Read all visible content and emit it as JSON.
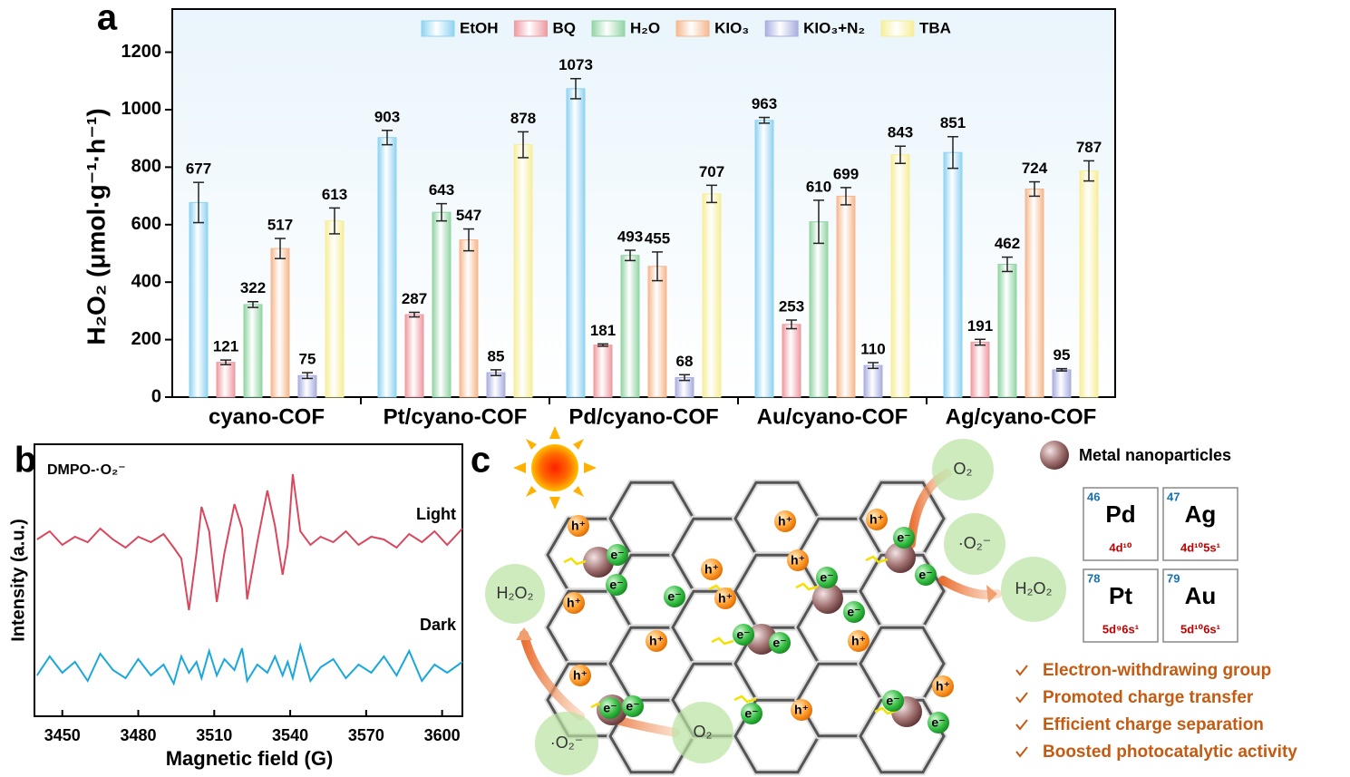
{
  "chart_data": [
    {
      "type": "bar",
      "panel_label": "a",
      "y_label": "H₂O₂ (μmol·g⁻¹·h⁻¹)",
      "categories": [
        "cyano-COF",
        "Pt/cyano-COF",
        "Pd/cyano-COF",
        "Au/cyano-COF",
        "Ag/cyano-COF"
      ],
      "series": [
        {
          "name": "EtOH",
          "color": "#8fd3f2",
          "values": [
            677,
            903,
            1073,
            963,
            851
          ],
          "errors": [
            70,
            25,
            35,
            10,
            55
          ]
        },
        {
          "name": "BQ",
          "color": "#ee9aa2",
          "values": [
            121,
            287,
            181,
            253,
            191
          ],
          "errors": [
            8,
            8,
            4,
            15,
            10
          ]
        },
        {
          "name": "H₂O",
          "color": "#93d4a4",
          "values": [
            322,
            643,
            493,
            610,
            462
          ],
          "errors": [
            10,
            30,
            18,
            75,
            25
          ]
        },
        {
          "name": "KIO₃",
          "color": "#f5b88f",
          "values": [
            517,
            547,
            455,
            699,
            724
          ],
          "errors": [
            35,
            38,
            50,
            30,
            25
          ]
        },
        {
          "name": "KIO₃+N₂",
          "color": "#a9aee0",
          "values": [
            75,
            85,
            68,
            110,
            95
          ],
          "errors": [
            10,
            10,
            10,
            10,
            4
          ]
        },
        {
          "name": "TBA",
          "color": "#f6ee98",
          "values": [
            613,
            878,
            707,
            843,
            787
          ],
          "errors": [
            45,
            45,
            30,
            30,
            35
          ]
        }
      ],
      "ylim": [
        0,
        1350
      ],
      "yticks": [
        0,
        200,
        400,
        600,
        800,
        1000,
        1200
      ],
      "legend": "top"
    },
    {
      "type": "line",
      "panel_label": "b",
      "annotation": "DMPO-·O₂⁻",
      "x_label": "Magnetic field (G)",
      "y_label": "Intensity (a.u.)",
      "x": [
        3440,
        3445,
        3450,
        3455,
        3460,
        3465,
        3470,
        3475,
        3480,
        3485,
        3490,
        3494,
        3497,
        3500,
        3503,
        3505,
        3508,
        3511,
        3514,
        3518,
        3521,
        3523,
        3527,
        3531,
        3534,
        3537,
        3539,
        3541,
        3544,
        3548,
        3552,
        3557,
        3562,
        3567,
        3572,
        3577,
        3582,
        3587,
        3592,
        3597,
        3602,
        3608
      ],
      "series": [
        {
          "name": "Light",
          "color": "#d9475d",
          "values": [
            6.5,
            6.8,
            6.3,
            6.6,
            6.4,
            6.9,
            6.5,
            6.2,
            6.6,
            6.4,
            6.7,
            6.2,
            5.8,
            3.9,
            6.0,
            7.7,
            6.8,
            4.2,
            6.0,
            7.8,
            6.9,
            4.3,
            6.4,
            8.3,
            7.0,
            5.2,
            6.3,
            8.9,
            6.8,
            6.3,
            6.6,
            6.4,
            6.8,
            6.3,
            6.6,
            6.5,
            6.2,
            6.7,
            6.4,
            6.8,
            6.3,
            6.9
          ]
        },
        {
          "name": "Dark",
          "color": "#1aa7dc",
          "values": [
            1.5,
            2.2,
            1.6,
            2.0,
            1.3,
            2.3,
            1.7,
            1.4,
            2.1,
            1.5,
            1.9,
            1.2,
            2.2,
            1.6,
            2.0,
            1.4,
            2.4,
            1.5,
            2.1,
            1.7,
            2.5,
            1.3,
            1.9,
            1.6,
            2.2,
            1.5,
            2.0,
            1.4,
            2.6,
            1.3,
            1.8,
            2.1,
            1.4,
            1.9,
            1.6,
            2.2,
            1.5,
            2.4,
            1.3,
            1.9,
            1.6,
            2.0
          ]
        }
      ],
      "xlim": [
        3439,
        3608
      ],
      "xticks": [
        3450,
        3480,
        3510,
        3540,
        3570,
        3600
      ],
      "ylim": [
        0,
        10
      ]
    }
  ],
  "diagram": {
    "panel_label": "c",
    "legend": "Metal nanoparticles",
    "elements": [
      {
        "number": 46,
        "symbol": "Pd",
        "config": "4d¹⁰"
      },
      {
        "number": 47,
        "symbol": "Ag",
        "config": "4d¹⁰5s¹"
      },
      {
        "number": 78,
        "symbol": "Pt",
        "config": "5d⁹6s¹"
      },
      {
        "number": 79,
        "symbol": "Au",
        "config": "5d¹⁰6s¹"
      }
    ],
    "species": {
      "o2": "O₂",
      "superoxide": "·O₂⁻",
      "h2o2": "H₂O₂",
      "hole": "h⁺",
      "electron": "e⁻"
    },
    "advantages": [
      "Electron-withdrawing group",
      "Promoted charge transfer",
      "Efficient charge separation",
      "Boosted photocatalytic activity"
    ]
  }
}
